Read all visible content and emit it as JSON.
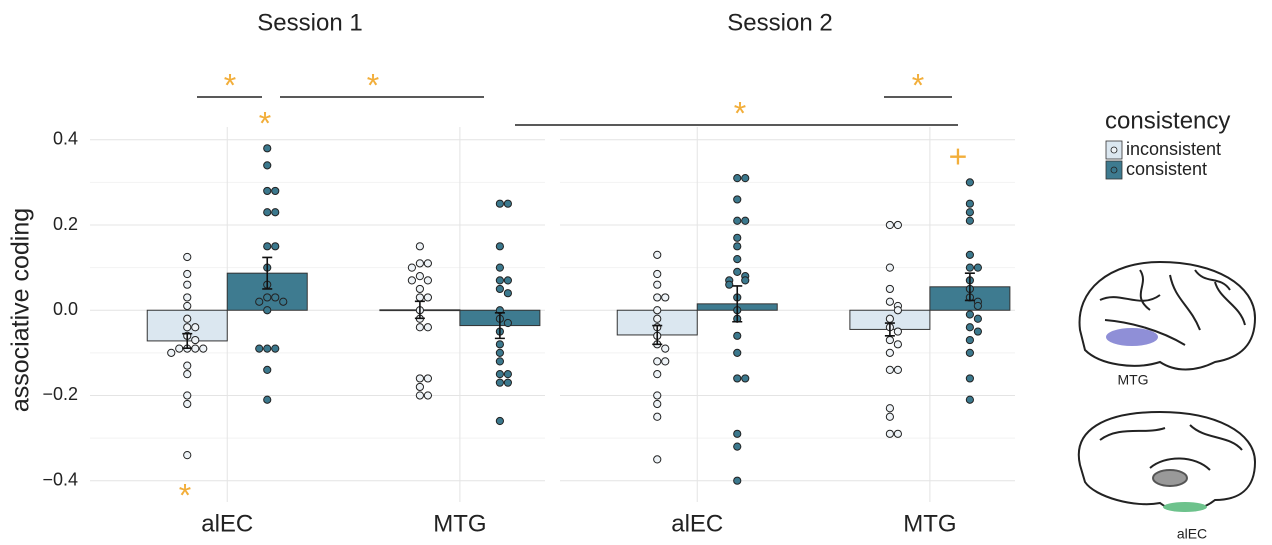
{
  "chart_data": {
    "type": "bar",
    "y_label": "associative coding",
    "ylim": [
      -0.45,
      0.43
    ],
    "yticks": [
      {
        "value": -0.4,
        "label": "−0.4"
      },
      {
        "value": -0.2,
        "label": "−0.2"
      },
      {
        "value": 0,
        "label": "0.0"
      },
      {
        "value": 0.2,
        "label": "0.2"
      },
      {
        "value": 0.4,
        "label": "0.4"
      }
    ],
    "grid": true,
    "legend": "right",
    "legend_title": "consistency",
    "series": [
      {
        "name": "inconsistent",
        "color": "#dbe7f0",
        "dot_color": "#eef3f7"
      },
      {
        "name": "consistent",
        "color": "#3e7b90",
        "dot_color": "#3b788d"
      }
    ],
    "panels": [
      {
        "title": "Session 1",
        "categories": [
          "alEC",
          "MTG"
        ],
        "series": [
          {
            "values": [
              -0.072,
              0.001
            ],
            "errors": [
              0.017,
              0.02
            ],
            "points": [
              [
                0.125,
                0.085,
                0.06,
                0.03,
                0.01,
                -0.02,
                -0.04,
                -0.04,
                -0.06,
                -0.07,
                -0.09,
                -0.09,
                -0.09,
                -0.09,
                -0.1,
                -0.13,
                -0.15,
                -0.2,
                -0.22,
                -0.34
              ],
              [
                0.15,
                0.11,
                0.11,
                0.1,
                0.08,
                0.07,
                0.07,
                0.05,
                0.03,
                0.03,
                0.0,
                -0.02,
                -0.04,
                -0.04,
                -0.16,
                -0.16,
                -0.18,
                -0.2,
                -0.2
              ]
            ]
          },
          {
            "values": [
              0.087,
              -0.036
            ],
            "errors": [
              0.037,
              0.03
            ],
            "points": [
              [
                0.38,
                0.34,
                0.28,
                0.28,
                0.23,
                0.23,
                0.15,
                0.15,
                0.1,
                0.06,
                0.03,
                0.03,
                0.02,
                0.02,
                0.0,
                -0.09,
                -0.09,
                -0.09,
                -0.14,
                -0.21
              ],
              [
                0.25,
                0.25,
                0.15,
                0.1,
                0.07,
                0.07,
                0.05,
                0.04,
                0.0,
                -0.02,
                -0.03,
                -0.05,
                -0.08,
                -0.1,
                -0.12,
                -0.15,
                -0.15,
                -0.17,
                -0.17,
                -0.26
              ]
            ]
          }
        ]
      },
      {
        "title": "Session 2",
        "categories": [
          "alEC",
          "MTG"
        ],
        "series": [
          {
            "values": [
              -0.058,
              -0.045
            ],
            "errors": [
              0.022,
              0.015
            ],
            "points": [
              [
                0.13,
                0.085,
                0.06,
                0.03,
                0.03,
                0.0,
                -0.02,
                -0.04,
                -0.06,
                -0.08,
                -0.09,
                -0.12,
                -0.12,
                -0.15,
                -0.2,
                -0.22,
                -0.25,
                -0.35
              ],
              [
                0.2,
                0.2,
                0.1,
                0.05,
                0.02,
                0.01,
                0.0,
                -0.02,
                -0.04,
                -0.05,
                -0.07,
                -0.08,
                -0.1,
                -0.14,
                -0.14,
                -0.23,
                -0.25,
                -0.29,
                -0.29
              ]
            ]
          },
          {
            "values": [
              0.015,
              0.055
            ],
            "errors": [
              0.042,
              0.032
            ],
            "points": [
              [
                0.31,
                0.31,
                0.26,
                0.21,
                0.21,
                0.17,
                0.15,
                0.12,
                0.09,
                0.08,
                0.07,
                0.07,
                0.06,
                0.03,
                0.0,
                -0.02,
                -0.06,
                -0.1,
                -0.16,
                -0.16,
                -0.29,
                -0.32,
                -0.4
              ],
              [
                0.3,
                0.25,
                0.23,
                0.21,
                0.13,
                0.1,
                0.1,
                0.07,
                0.05,
                0.03,
                0.02,
                0.01,
                -0.01,
                -0.02,
                -0.04,
                -0.05,
                -0.07,
                -0.1,
                -0.16,
                -0.21
              ]
            ]
          }
        ]
      }
    ],
    "annotations": [
      "*",
      "*",
      "*",
      "*",
      "*",
      "*",
      "+"
    ],
    "inset_labels": [
      "MTG",
      "alEC"
    ]
  }
}
